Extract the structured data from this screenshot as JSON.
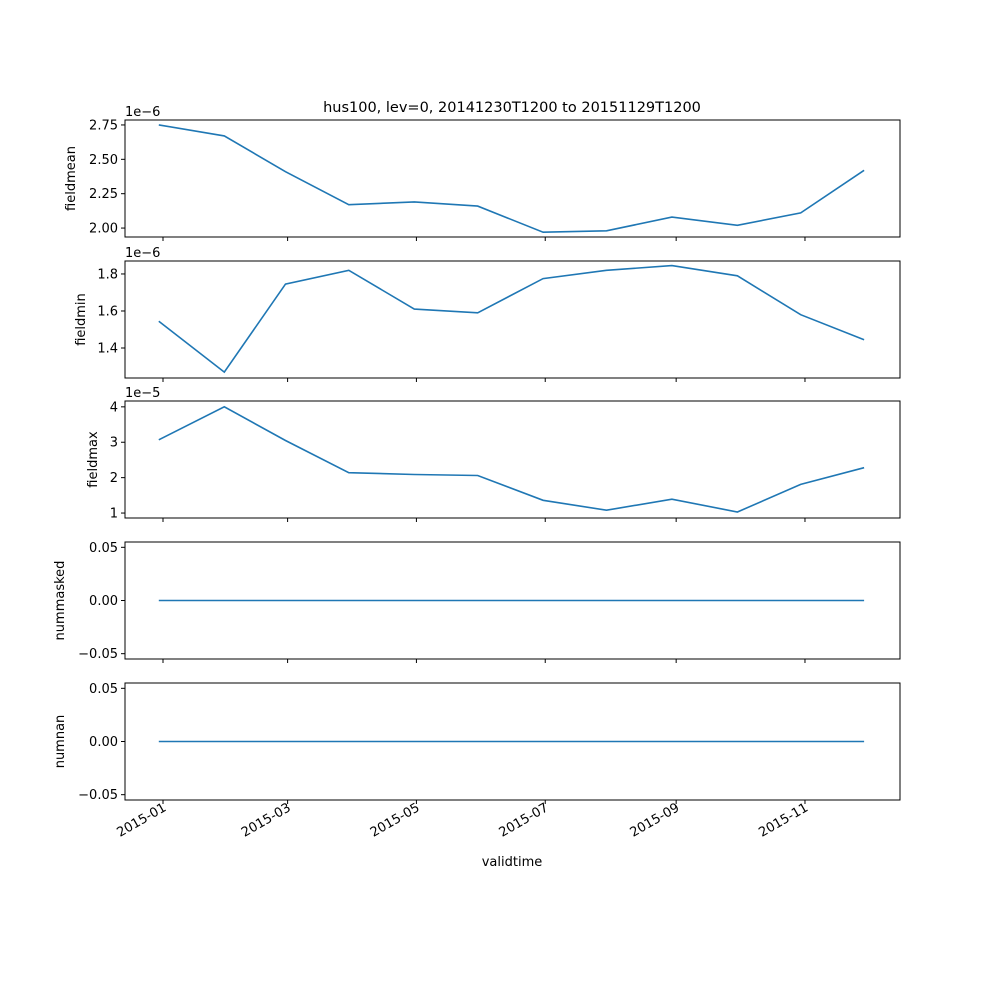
{
  "chart_data": {
    "type": "line",
    "title": "hus100, lev=0, 20141230T1200 to 20151129T1200",
    "xlabel": "validtime",
    "x": [
      "2014-12-30",
      "2015-01-30",
      "2015-02-28",
      "2015-03-30",
      "2015-04-30",
      "2015-05-30",
      "2015-06-30",
      "2015-07-30",
      "2015-08-30",
      "2015-09-30",
      "2015-10-30",
      "2015-11-29"
    ],
    "xlim": [
      "2014-12-14",
      "2015-12-16"
    ],
    "xticks": [
      {
        "date": "2015-01-01",
        "label": "2015-01"
      },
      {
        "date": "2015-03-01",
        "label": "2015-03"
      },
      {
        "date": "2015-05-01",
        "label": "2015-05"
      },
      {
        "date": "2015-07-01",
        "label": "2015-07"
      },
      {
        "date": "2015-09-01",
        "label": "2015-09"
      },
      {
        "date": "2015-11-01",
        "label": "2015-11"
      }
    ],
    "line_color": "#1f77b4",
    "grid": false,
    "panels": [
      {
        "ylabel": "fieldmean",
        "offset_label": "1e−6",
        "ylim": [
          1.935,
          2.786
        ],
        "yticks": [
          {
            "v": 2.0,
            "label": "2.00"
          },
          {
            "v": 2.25,
            "label": "2.25"
          },
          {
            "v": 2.5,
            "label": "2.50"
          },
          {
            "v": 2.75,
            "label": "2.75"
          }
        ],
        "values": [
          2.75,
          2.67,
          2.41,
          2.17,
          2.19,
          2.16,
          1.97,
          1.98,
          2.08,
          2.02,
          2.11,
          2.42
        ]
      },
      {
        "ylabel": "fieldmin",
        "offset_label": "1e−6",
        "ylim": [
          1.238,
          1.87
        ],
        "yticks": [
          {
            "v": 1.4,
            "label": "1.4"
          },
          {
            "v": 1.6,
            "label": "1.6"
          },
          {
            "v": 1.8,
            "label": "1.8"
          }
        ],
        "values": [
          1.545,
          1.27,
          1.745,
          1.82,
          1.61,
          1.59,
          1.775,
          1.82,
          1.845,
          1.79,
          1.58,
          1.445
        ]
      },
      {
        "ylabel": "fieldmax",
        "offset_label": "1e−5",
        "ylim": [
          0.86,
          4.165
        ],
        "yticks": [
          {
            "v": 1,
            "label": "1"
          },
          {
            "v": 2,
            "label": "2"
          },
          {
            "v": 3,
            "label": "3"
          },
          {
            "v": 4,
            "label": "4"
          }
        ],
        "values": [
          3.07,
          4.0,
          3.05,
          2.14,
          2.09,
          2.06,
          1.36,
          1.08,
          1.39,
          1.03,
          1.81,
          2.28
        ]
      },
      {
        "ylabel": "nummasked",
        "offset_label": "",
        "ylim": [
          -0.055,
          0.055
        ],
        "yticks": [
          {
            "v": -0.05,
            "label": "−0.05"
          },
          {
            "v": 0,
            "label": "0.00"
          },
          {
            "v": 0.05,
            "label": "0.05"
          }
        ],
        "values": [
          0,
          0,
          0,
          0,
          0,
          0,
          0,
          0,
          0,
          0,
          0,
          0
        ]
      },
      {
        "ylabel": "numnan",
        "offset_label": "",
        "ylim": [
          -0.055,
          0.055
        ],
        "yticks": [
          {
            "v": -0.05,
            "label": "−0.05"
          },
          {
            "v": 0,
            "label": "0.00"
          },
          {
            "v": 0.05,
            "label": "0.05"
          }
        ],
        "values": [
          0,
          0,
          0,
          0,
          0,
          0,
          0,
          0,
          0,
          0,
          0,
          0
        ]
      }
    ]
  }
}
